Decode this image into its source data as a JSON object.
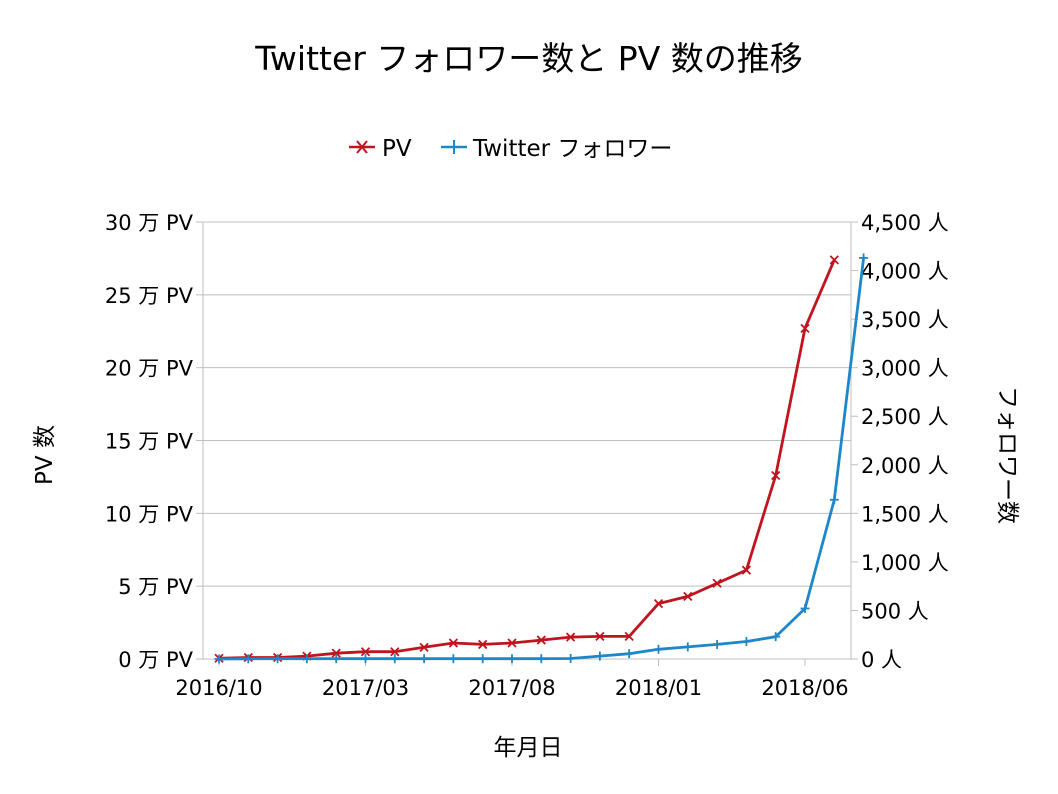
{
  "chart_data": {
    "type": "line",
    "title": "Twitter フォロワー数と PV 数の推移",
    "xlabel": "年月日",
    "ylabel_left": "PV 数",
    "ylabel_right": "フォロワー数",
    "legend_position": "top",
    "grid": true,
    "x_tick_labels": [
      "2016/10",
      "2017/03",
      "2017/08",
      "2018/01",
      "2018/06"
    ],
    "x_tick_indices": [
      0,
      5,
      10,
      15,
      20
    ],
    "x_count": 23,
    "y_left": {
      "lim": [
        0,
        30
      ],
      "ticks": [
        0,
        5,
        10,
        15,
        20,
        25,
        30
      ],
      "tick_labels": [
        "0 万 PV",
        "5 万 PV",
        "10 万 PV",
        "15 万 PV",
        "20 万 PV",
        "25 万 PV",
        "30 万 PV"
      ]
    },
    "y_right": {
      "lim": [
        0,
        4500
      ],
      "ticks": [
        0,
        500,
        1000,
        1500,
        2000,
        2500,
        3000,
        3500,
        4000,
        4500
      ],
      "tick_labels": [
        "0 人",
        "500 人",
        "1,000 人",
        "1,500 人",
        "2,000 人",
        "2,500 人",
        "3,000 人",
        "3,500 人",
        "4,000 人",
        "4,500 人"
      ]
    },
    "series": [
      {
        "name": "PV",
        "axis": "left",
        "color": "#c0141e",
        "marker": "x",
        "values": [
          0.05,
          0.1,
          0.1,
          0.2,
          0.4,
          0.5,
          0.5,
          0.8,
          1.1,
          1.0,
          1.1,
          1.3,
          1.5,
          1.55,
          1.55,
          3.8,
          4.3,
          5.2,
          6.1,
          12.6,
          22.7,
          27.4
        ]
      },
      {
        "name": "Twitter フォロワー",
        "axis": "right",
        "color": "#1e87c8",
        "marker": "+",
        "values": [
          0,
          2,
          3,
          3,
          3,
          3,
          3,
          3,
          3,
          3,
          3,
          3,
          5,
          30,
          55,
          100,
          125,
          150,
          180,
          230,
          520,
          1640,
          4130
        ]
      }
    ]
  }
}
